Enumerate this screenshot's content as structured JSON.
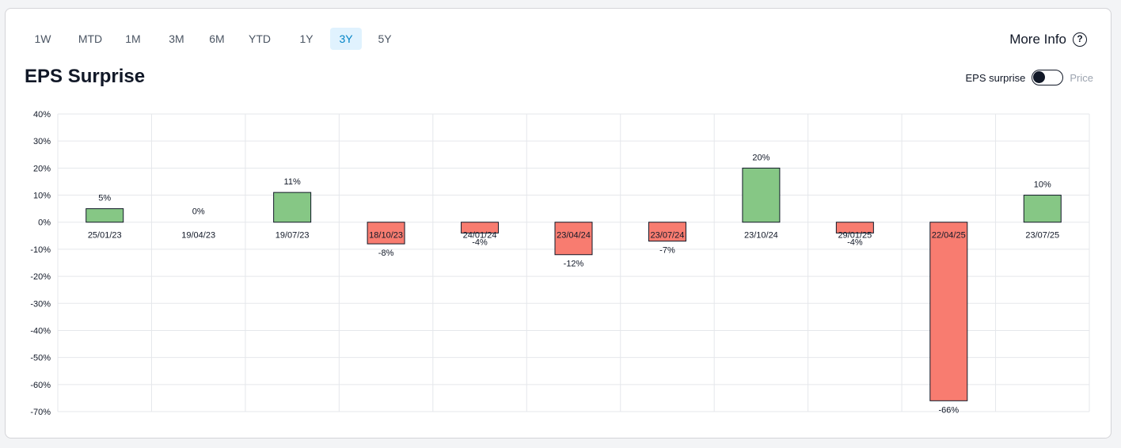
{
  "tabs": [
    {
      "label": "1W",
      "active": false
    },
    {
      "label": "MTD",
      "active": false
    },
    {
      "label": "1M",
      "active": false
    },
    {
      "label": "3M",
      "active": false
    },
    {
      "label": "6M",
      "active": false
    },
    {
      "label": "YTD",
      "active": false
    },
    {
      "label": "1Y",
      "active": false
    },
    {
      "label": "3Y",
      "active": true
    },
    {
      "label": "5Y",
      "active": false
    }
  ],
  "more_info": {
    "label": "More Info",
    "icon": "help-icon"
  },
  "toggle": {
    "left_label": "EPS surprise",
    "right_label": "Price",
    "state": "eps"
  },
  "colors": {
    "positive": "#86c785",
    "negative": "#f87c70",
    "active_tab": "#0284c7"
  },
  "chart_data": {
    "type": "bar",
    "title": "EPS Surprise",
    "xlabel": "",
    "ylabel": "",
    "ylim": [
      -70,
      40
    ],
    "yticks": [
      "40%",
      "30%",
      "20%",
      "10%",
      "0%",
      "-10%",
      "-20%",
      "-30%",
      "-40%",
      "-50%",
      "-60%",
      "-70%"
    ],
    "grid": true,
    "categories": [
      "25/01/23",
      "19/04/23",
      "19/07/23",
      "18/10/23",
      "24/01/24",
      "23/04/24",
      "23/07/24",
      "23/10/24",
      "29/01/25",
      "22/04/25",
      "23/07/25"
    ],
    "values": [
      5,
      0,
      11,
      -8,
      -4,
      -12,
      -7,
      20,
      -4,
      -66,
      10
    ],
    "value_labels": [
      "5%",
      "0%",
      "11%",
      "-8%",
      "-4%",
      "-12%",
      "-7%",
      "20%",
      "-4%",
      "-66%",
      "10%"
    ]
  }
}
